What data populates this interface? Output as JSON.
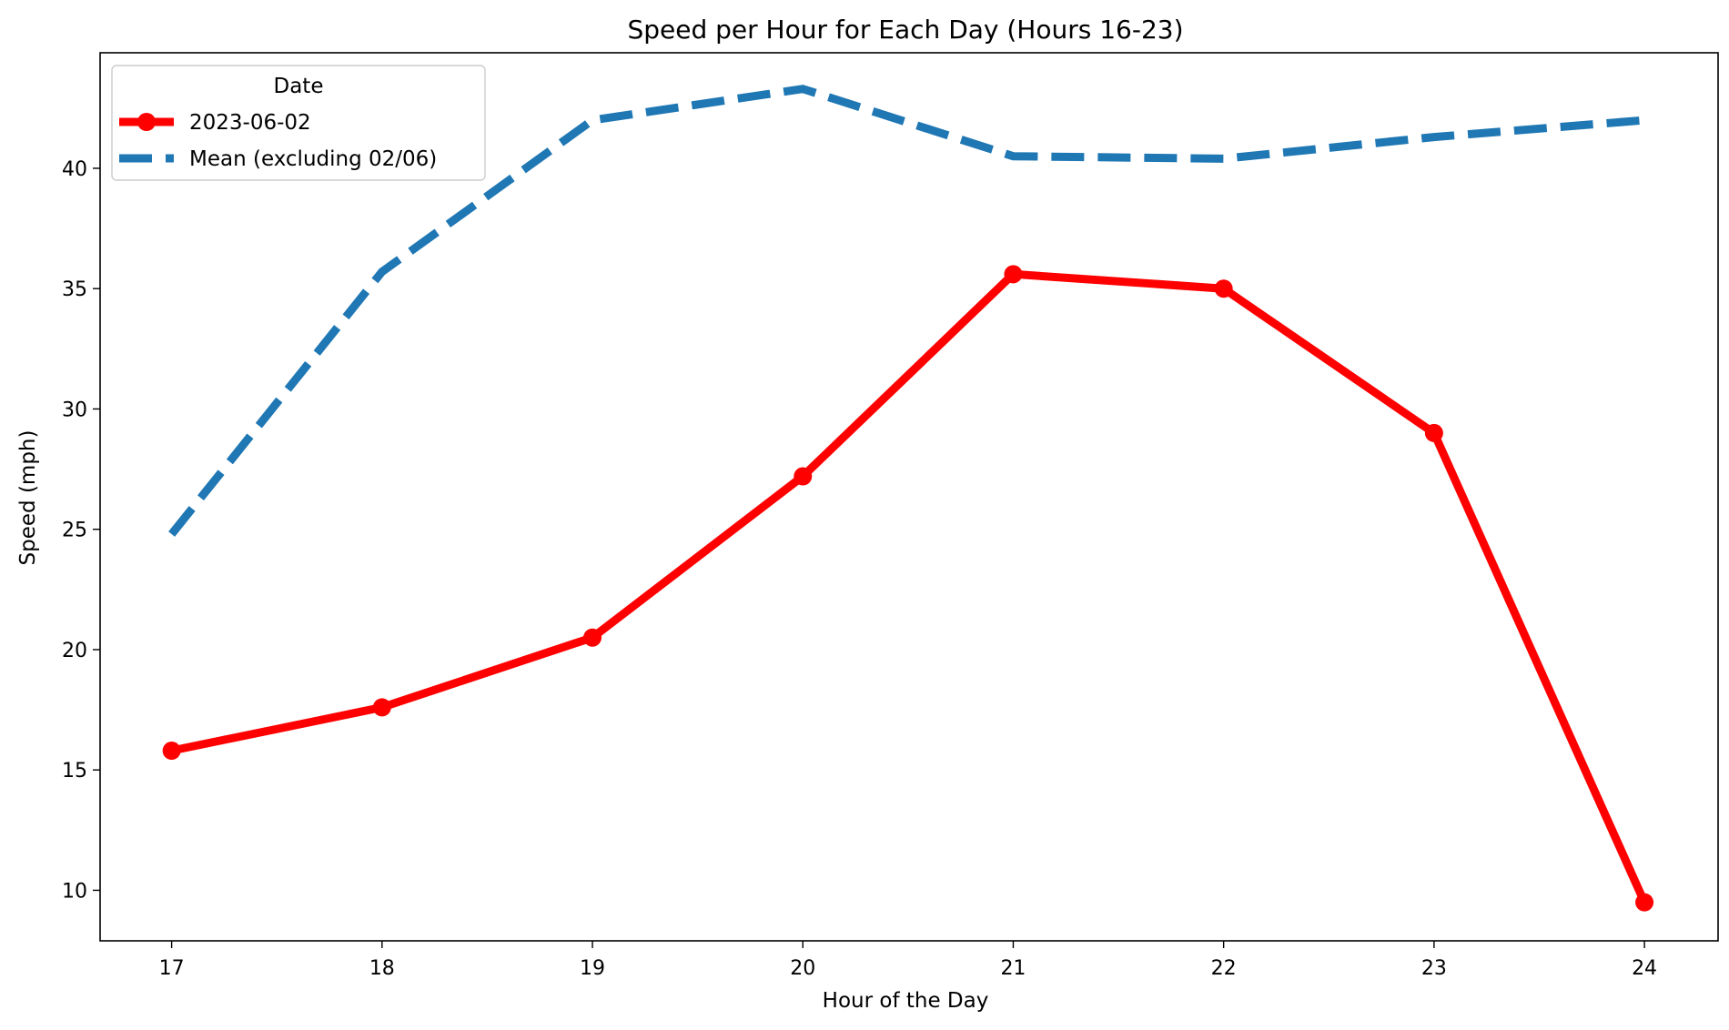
{
  "chart_data": {
    "type": "line",
    "title": "Speed per Hour for Each Day (Hours 16-23)",
    "xlabel": "Hour of the Day",
    "ylabel": "Speed (mph)",
    "x": [
      17,
      18,
      19,
      20,
      21,
      22,
      23,
      24
    ],
    "xlim": [
      16.66,
      24.35
    ],
    "ylim": [
      7.9,
      44.8
    ],
    "xticks": [
      17,
      18,
      19,
      20,
      21,
      22,
      23,
      24
    ],
    "yticks": [
      10,
      15,
      20,
      25,
      30,
      35,
      40
    ],
    "grid": false,
    "legend": {
      "title": "Date",
      "placement": "top-left"
    },
    "series": [
      {
        "name": "2023-06-02",
        "values": [
          15.8,
          17.6,
          20.5,
          27.2,
          35.6,
          35.0,
          29.0,
          9.5
        ],
        "color": "#ff0000",
        "style": "solid",
        "marker": "circle"
      },
      {
        "name": "Mean (excluding 02/06)",
        "values": [
          24.8,
          35.7,
          42.0,
          43.3,
          40.5,
          40.4,
          41.3,
          42.0
        ],
        "color": "#1f77b4",
        "style": "dashed",
        "marker": "none"
      }
    ]
  }
}
